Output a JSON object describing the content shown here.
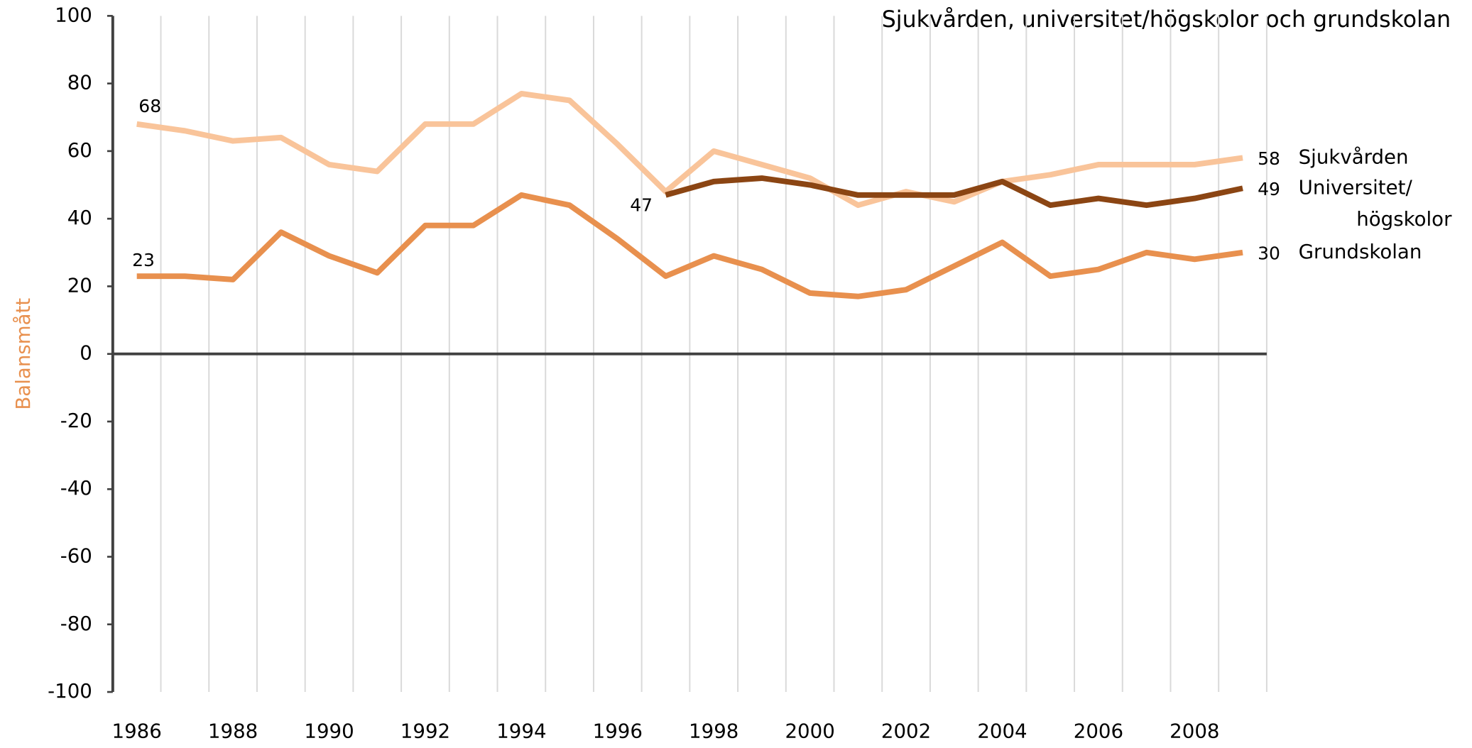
{
  "chart_data": {
    "type": "line",
    "title": "Sjukvården, universitet/högskolor och grundskolan",
    "y_label": "Balansmått",
    "categories": [
      "1986",
      null,
      "1988",
      null,
      "1990",
      null,
      "1992",
      null,
      "1994",
      null,
      "1996",
      null,
      "1998",
      null,
      "2000",
      null,
      "2002",
      null,
      "2004",
      null,
      "2006",
      null,
      "2008",
      null
    ],
    "series": [
      {
        "name": "Sjukvården",
        "color": "#f9c49a",
        "values": [
          68,
          66,
          63,
          64,
          56,
          54,
          68,
          68,
          77,
          75,
          62,
          48,
          60,
          56,
          52,
          44,
          48,
          45,
          51,
          53,
          56,
          56,
          56,
          58
        ]
      },
      {
        "name": "Universitet/ högskolor",
        "color": "#8b4513",
        "values": [
          null,
          null,
          null,
          null,
          null,
          null,
          null,
          null,
          null,
          null,
          null,
          47,
          51,
          52,
          50,
          47,
          47,
          47,
          51,
          44,
          46,
          44,
          46,
          49
        ]
      },
      {
        "name": "Grundskolan",
        "color": "#e8904e",
        "values": [
          23,
          23,
          22,
          36,
          29,
          24,
          38,
          38,
          47,
          44,
          34,
          23,
          29,
          25,
          18,
          17,
          19,
          26,
          33,
          23,
          25,
          30,
          28,
          30
        ]
      }
    ],
    "ylim": [
      -100,
      100
    ],
    "yticks": [
      -100,
      -80,
      -60,
      -40,
      -20,
      0,
      20,
      40,
      60,
      80,
      100
    ],
    "grid": true
  }
}
